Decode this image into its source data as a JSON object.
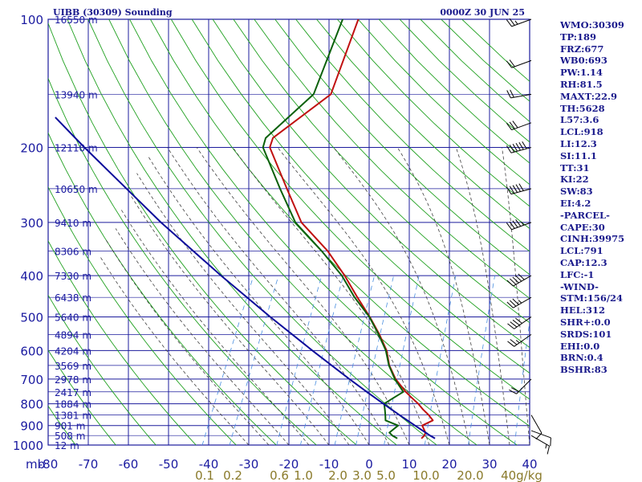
{
  "header": {
    "title": "UIBB (30309) Sounding",
    "datetime": "0000Z 30 JUN 25"
  },
  "axis": {
    "units_label": "mb",
    "pressure_levels": [
      100,
      200,
      300,
      400,
      500,
      600,
      700,
      800,
      900,
      1000
    ],
    "pressure_labels": [
      "100",
      "200",
      "300",
      "400",
      "500",
      "600",
      "700",
      "800",
      "900",
      "1000"
    ],
    "temp_ticks": [
      -80,
      -70,
      -60,
      -50,
      -40,
      -30,
      -20,
      -10,
      0,
      10,
      20,
      30,
      40
    ],
    "temp_tick_labels": [
      "-80",
      "-70",
      "-60",
      "-50",
      "-40",
      "-30",
      "-20",
      "-10",
      "0",
      "10",
      "20",
      "30",
      "40"
    ],
    "mixing_ratio_labels": [
      "0.1",
      "0.2",
      "0.6",
      "1.0",
      "2.0",
      "3.0",
      "5.0",
      "10.0",
      "20.0",
      "40g/kg"
    ]
  },
  "height_labels": [
    {
      "p": 100,
      "label": "16550 m"
    },
    {
      "p": 150,
      "label": "13940 m"
    },
    {
      "p": 200,
      "label": "12110 m"
    },
    {
      "p": 250,
      "label": "10650 m"
    },
    {
      "p": 300,
      "label": "9410 m"
    },
    {
      "p": 350,
      "label": "8306 m"
    },
    {
      "p": 400,
      "label": "7330 m"
    },
    {
      "p": 450,
      "label": "6438 m"
    },
    {
      "p": 500,
      "label": "5640 m"
    },
    {
      "p": 550,
      "label": "4894 m"
    },
    {
      "p": 600,
      "label": "4204 m"
    },
    {
      "p": 650,
      "label": "3569 m"
    },
    {
      "p": 700,
      "label": "2978 m"
    },
    {
      "p": 750,
      "label": "2417 m"
    },
    {
      "p": 800,
      "label": "1884 m"
    },
    {
      "p": 850,
      "label": "1381 m"
    },
    {
      "p": 900,
      "label": "901 m"
    },
    {
      "p": 950,
      "label": "508 m"
    },
    {
      "p": 1000,
      "label": "12 m"
    }
  ],
  "indices": [
    "WMO:30309",
    "TP:189",
    "FRZ:677",
    "WB0:693",
    "PW:1.14",
    "RH:81.5",
    "MAXT:22.9",
    "TH:5628",
    "L57:3.6",
    "LCL:918",
    "LI:12.3",
    "SI:11.1",
    "TT:31",
    "KI:22",
    "SW:83",
    "EI:4.2",
    "-PARCEL-",
    "CAPE:30",
    "CINH:39975",
    "LCL:791",
    "CAP:12.3",
    "LFC:-1",
    "-WIND-",
    "STM:156/24",
    "HEL:312",
    "SHR+:0.0",
    "SRDS:101",
    "EHI:0.0",
    "BRN:0.4",
    "BSHR:83"
  ],
  "colors": {
    "grid": "#1c1c9c",
    "dry_adiabat": "#1fa01f",
    "moist_adiabat": "#404040",
    "mixing_ratio": "#4a8fe0",
    "temperature": "#c01010",
    "dewpoint": "#0a600a",
    "parcel": "#0a0a9a"
  },
  "chart_data": {
    "type": "skew-t",
    "title": "UIBB (30309) Sounding",
    "datetime": "0000Z 30 JUN 25",
    "ylabel": "mb",
    "ylim": [
      1000,
      100
    ],
    "xlim": [
      -80,
      40
    ],
    "grid": true,
    "series": [
      {
        "name": "temperature",
        "p": [
          965,
          950,
          935,
          900,
          875,
          850,
          825,
          800,
          775,
          750,
          700,
          650,
          600,
          550,
          500,
          450,
          400,
          350,
          300,
          250,
          200,
          190,
          150,
          100
        ],
        "t": [
          12.2,
          12.6,
          12.5,
          10.8,
          12.8,
          11.1,
          9.0,
          7.1,
          4.8,
          2.5,
          -1.6,
          -4.9,
          -7.4,
          -11.2,
          -15.8,
          -21.3,
          -27.2,
          -34.5,
          -44.6,
          -52.4,
          -61.8,
          -62.2,
          -53.2,
          -55.7
        ]
      },
      {
        "name": "dewpoint",
        "p": [
          965,
          950,
          935,
          900,
          875,
          850,
          825,
          800,
          775,
          750,
          700,
          650,
          600,
          550,
          500,
          450,
          400,
          350,
          300,
          250,
          200,
          190,
          150,
          100
        ],
        "t": [
          6.2,
          4.6,
          3.5,
          4.8,
          1.0,
          0.3,
          -0.5,
          -1.4,
          0.2,
          1.9,
          -1.8,
          -5.0,
          -7.6,
          -11.4,
          -15.9,
          -22.0,
          -27.9,
          -36.0,
          -46.1,
          -54.1,
          -63.5,
          -64.0,
          -57.5,
          -59.6
        ]
      },
      {
        "name": "parcel",
        "p": [
          965,
          950,
          900,
          850,
          800,
          750,
          700,
          600,
          500,
          400,
          300,
          200,
          170
        ],
        "t": [
          15.6,
          14.0,
          9.0,
          3.8,
          -1.6,
          -7.2,
          -13.1,
          -25.9,
          -40.6,
          -58.0,
          -79.6,
          -108.0,
          -119.0
        ]
      }
    ],
    "winds": [
      {
        "p": 100,
        "dir": 250,
        "spd": 25
      },
      {
        "p": 125,
        "dir": 250,
        "spd": 20
      },
      {
        "p": 150,
        "dir": 260,
        "spd": 20
      },
      {
        "p": 175,
        "dir": 250,
        "spd": 30
      },
      {
        "p": 200,
        "dir": 255,
        "spd": 60
      },
      {
        "p": 250,
        "dir": 255,
        "spd": 50
      },
      {
        "p": 300,
        "dir": 250,
        "spd": 45
      },
      {
        "p": 400,
        "dir": 240,
        "spd": 50
      },
      {
        "p": 450,
        "dir": 240,
        "spd": 35
      },
      {
        "p": 500,
        "dir": 235,
        "spd": 40
      },
      {
        "p": 550,
        "dir": 235,
        "spd": 25
      },
      {
        "p": 700,
        "dir": 225,
        "spd": 20
      },
      {
        "p": 850,
        "dir": 150,
        "spd": 10
      },
      {
        "p": 925,
        "dir": 110,
        "spd": 10
      },
      {
        "p": 950,
        "dir": 120,
        "spd": 15
      }
    ]
  }
}
